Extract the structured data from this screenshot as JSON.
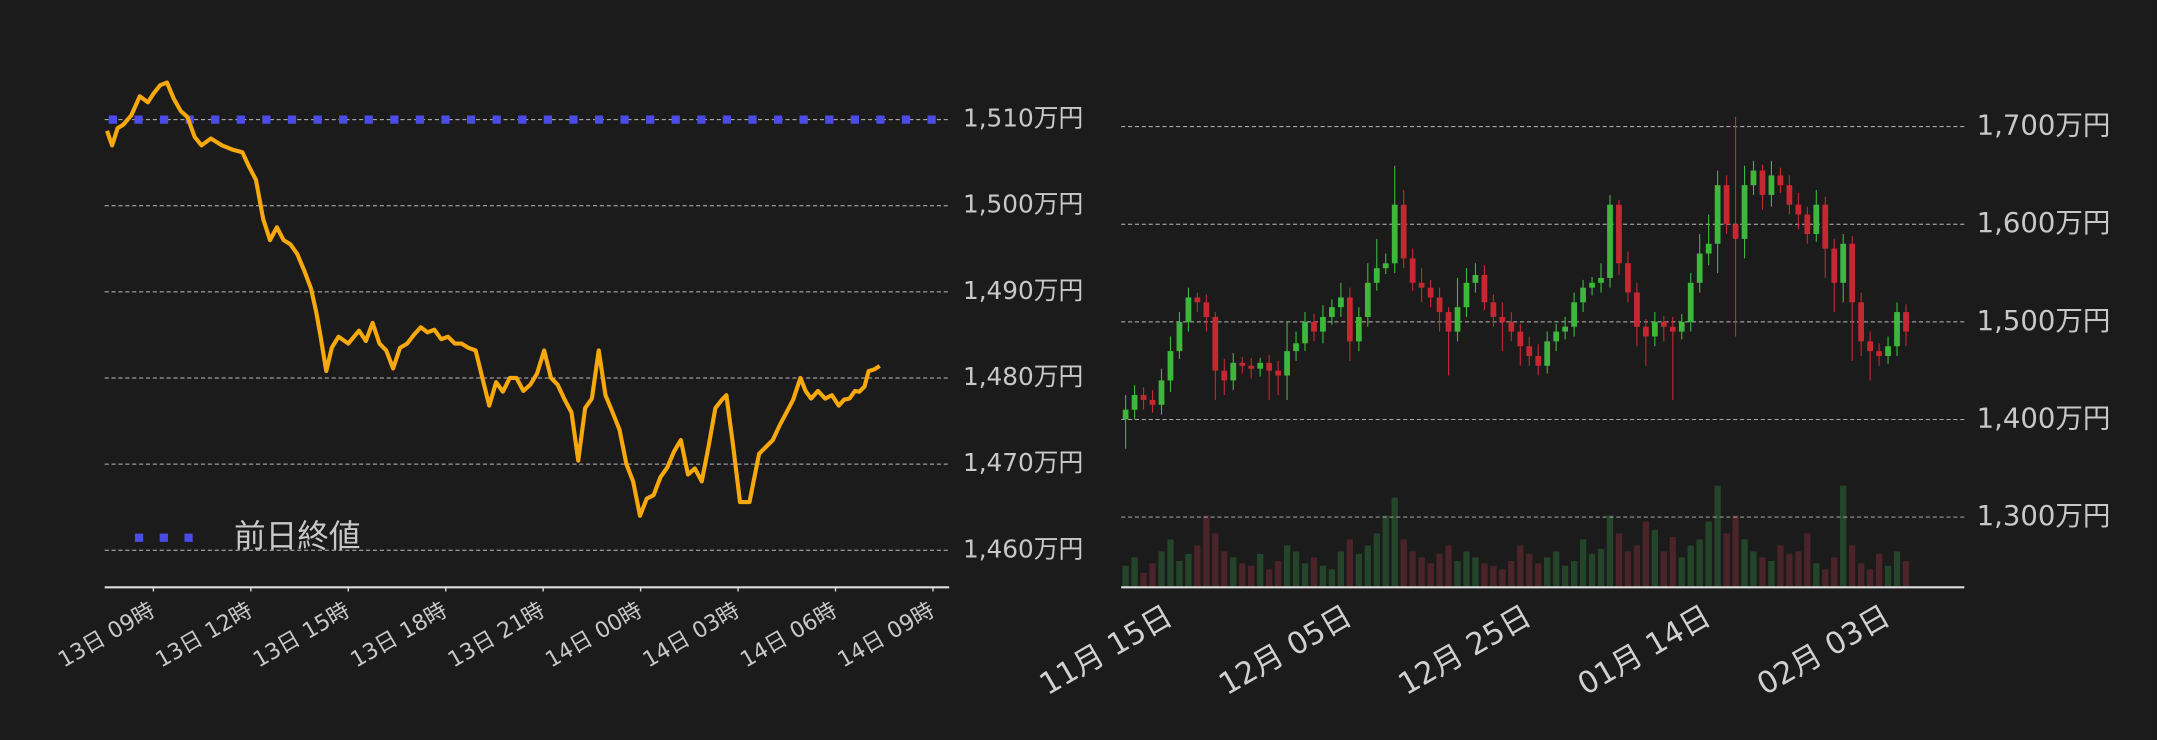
{
  "chart_data": [
    {
      "type": "line",
      "x": [
        7.57,
        7.73,
        7.9,
        8.07,
        8.32,
        8.58,
        8.83,
        9.0,
        9.21,
        9.42,
        9.63,
        9.84,
        10.05,
        10.27,
        10.48,
        10.77,
        11.11,
        11.45,
        11.74,
        11.95,
        12.16,
        12.38,
        12.59,
        12.8,
        13.01,
        13.22,
        13.43,
        13.64,
        13.85,
        14.02,
        14.15,
        14.32,
        14.49,
        14.7,
        15.0,
        15.33,
        15.54,
        15.75,
        15.96,
        16.17,
        16.38,
        16.59,
        16.81,
        17.02,
        17.23,
        17.44,
        17.65,
        17.86,
        18.07,
        18.28,
        18.49,
        18.7,
        18.92,
        19.13,
        19.34,
        19.55,
        19.76,
        19.97,
        20.18,
        20.39,
        20.6,
        20.81,
        21.03,
        21.24,
        21.45,
        21.66,
        21.87,
        22.08,
        22.29,
        22.5,
        22.71,
        22.92,
        23.14,
        23.35,
        23.56,
        23.77,
        23.98,
        24.19,
        24.4,
        24.61,
        24.82,
        25.03,
        25.24,
        25.46,
        25.67,
        25.88,
        26.09,
        26.3,
        26.51,
        26.64,
        26.85,
        27.06,
        27.35,
        27.65,
        27.86,
        28.07,
        28.28,
        28.49,
        28.7,
        28.92,
        29.08,
        29.25,
        29.46,
        29.68,
        29.89,
        30.1,
        30.27,
        30.43,
        30.6,
        30.73,
        30.89,
        31.02,
        31.19,
        31.36
      ],
      "series": [
        {
          "color": "#f6a80c",
          "values": [
            1508.7,
            1507.0,
            1509.0,
            1509.4,
            1510.5,
            1512.7,
            1512.0,
            1513.0,
            1514.0,
            1514.3,
            1512.4,
            1511.0,
            1510.3,
            1508.0,
            1507.0,
            1507.8,
            1507.0,
            1506.5,
            1506.2,
            1504.5,
            1503.0,
            1498.5,
            1496.0,
            1497.5,
            1496.0,
            1495.5,
            1494.4,
            1492.5,
            1490.4,
            1487.5,
            1484.8,
            1480.8,
            1483.5,
            1484.8,
            1484.0,
            1485.5,
            1484.3,
            1486.4,
            1484.0,
            1483.2,
            1481.1,
            1483.5,
            1484.0,
            1485.0,
            1485.9,
            1485.3,
            1485.6,
            1484.5,
            1484.8,
            1484.0,
            1484.0,
            1483.5,
            1483.2,
            1480.0,
            1476.8,
            1479.5,
            1478.4,
            1480.0,
            1480.0,
            1478.5,
            1479.2,
            1480.5,
            1483.2,
            1480.0,
            1479.2,
            1477.5,
            1476.0,
            1470.4,
            1476.5,
            1477.6,
            1483.2,
            1478.0,
            1476.0,
            1474.0,
            1470.0,
            1468.0,
            1464.0,
            1466.0,
            1466.4,
            1468.5,
            1469.6,
            1471.5,
            1472.8,
            1468.8,
            1469.5,
            1468.0,
            1472.0,
            1476.5,
            1477.5,
            1478.0,
            1472.0,
            1465.6,
            1465.6,
            1471.2,
            1472.0,
            1472.8,
            1474.5,
            1476.0,
            1477.5,
            1480.0,
            1478.5,
            1477.6,
            1478.5,
            1477.6,
            1478.0,
            1476.8,
            1477.5,
            1477.6,
            1478.5,
            1478.4,
            1479.0,
            1480.8,
            1481.0,
            1481.4
          ]
        }
      ],
      "reference_line": {
        "name": "前日終値",
        "value": 1510,
        "color": "#4b4be6"
      },
      "legend": "lower left",
      "xlim": [
        7.5,
        33.5
      ],
      "xticks": [
        {
          "value": 9,
          "label": "13日 09時"
        },
        {
          "value": 12,
          "label": "13日 12時"
        },
        {
          "value": 15,
          "label": "13日 15時"
        },
        {
          "value": 18,
          "label": "13日 18時"
        },
        {
          "value": 21,
          "label": "13日 21時"
        },
        {
          "value": 24,
          "label": "14日 00時"
        },
        {
          "value": 27,
          "label": "14日 03時"
        },
        {
          "value": 30,
          "label": "14日 06時"
        },
        {
          "value": 33,
          "label": "14日 09時"
        }
      ],
      "ylim": [
        1455.7,
        1515.1
      ],
      "yticks": [
        {
          "value": 1460,
          "label": "1,460万円"
        },
        {
          "value": 1470,
          "label": "1,470万円"
        },
        {
          "value": 1480,
          "label": "1,480万円"
        },
        {
          "value": 1490,
          "label": "1,490万円"
        },
        {
          "value": 1500,
          "label": "1,500万円"
        },
        {
          "value": 1510,
          "label": "1,510万円"
        }
      ],
      "grid": true
    },
    {
      "type": "candlestick",
      "categories": [
        null,
        null,
        null,
        null,
        null,
        "11月 15日",
        null,
        null,
        null,
        null,
        null,
        null,
        null,
        null,
        null,
        null,
        null,
        null,
        null,
        null,
        null,
        null,
        null,
        null,
        null,
        "12月 05日",
        null,
        null,
        null,
        null,
        null,
        null,
        null,
        null,
        null,
        null,
        null,
        null,
        null,
        null,
        null,
        null,
        null,
        null,
        null,
        "12月 25日",
        null,
        null,
        null,
        null,
        null,
        null,
        null,
        null,
        null,
        null,
        null,
        null,
        null,
        null,
        null,
        null,
        null,
        null,
        null,
        "01月 14日",
        null,
        null,
        null,
        null,
        null,
        null,
        null,
        null,
        null,
        null,
        null,
        null,
        null,
        null,
        null,
        null,
        null,
        null,
        null,
        "02月 03日",
        null,
        null
      ],
      "open": [
        1400,
        1410,
        1425,
        1420,
        1415,
        1440,
        1470,
        1500,
        1525,
        1520,
        1505,
        1450,
        1440,
        1458,
        1455,
        1452,
        1458,
        1450,
        1445,
        1470,
        1478,
        1500,
        1490,
        1505,
        1515,
        1525,
        1480,
        1505,
        1540,
        1555,
        1560,
        1620,
        1565,
        1540,
        1535,
        1525,
        1510,
        1490,
        1515,
        1540,
        1548,
        1520,
        1505,
        1500,
        1490,
        1475,
        1465,
        1455,
        1480,
        1490,
        1495,
        1520,
        1535,
        1540,
        1545,
        1620,
        1560,
        1530,
        1495,
        1485,
        1500,
        1495,
        1490,
        1500,
        1540,
        1570,
        1580,
        1640,
        1600,
        1585,
        1640,
        1655,
        1630,
        1650,
        1640,
        1620,
        1610,
        1590,
        1620,
        1575,
        1540,
        1580,
        1520,
        1480,
        1470,
        1465,
        1475,
        1510
      ],
      "high": [
        1425,
        1435,
        1433,
        1430,
        1452,
        1485,
        1510,
        1535,
        1530,
        1528,
        1510,
        1462,
        1468,
        1464,
        1463,
        1463,
        1466,
        1460,
        1500,
        1490,
        1510,
        1508,
        1517,
        1523,
        1540,
        1535,
        1515,
        1560,
        1585,
        1570,
        1660,
        1635,
        1575,
        1555,
        1543,
        1535,
        1515,
        1545,
        1555,
        1560,
        1558,
        1528,
        1520,
        1510,
        1498,
        1485,
        1477,
        1490,
        1498,
        1505,
        1530,
        1543,
        1546,
        1560,
        1630,
        1625,
        1572,
        1540,
        1503,
        1510,
        1506,
        1505,
        1508,
        1550,
        1590,
        1610,
        1655,
        1650,
        1710,
        1660,
        1665,
        1661,
        1665,
        1658,
        1650,
        1632,
        1618,
        1635,
        1628,
        1585,
        1590,
        1588,
        1530,
        1490,
        1478,
        1485,
        1520,
        1518
      ],
      "low": [
        1370,
        1400,
        1410,
        1407,
        1405,
        1428,
        1462,
        1490,
        1510,
        1490,
        1420,
        1425,
        1430,
        1447,
        1442,
        1444,
        1420,
        1425,
        1420,
        1460,
        1470,
        1480,
        1478,
        1497,
        1505,
        1460,
        1470,
        1495,
        1532,
        1549,
        1550,
        1555,
        1532,
        1520,
        1515,
        1490,
        1445,
        1480,
        1505,
        1530,
        1512,
        1495,
        1470,
        1480,
        1455,
        1455,
        1445,
        1447,
        1470,
        1482,
        1485,
        1510,
        1527,
        1530,
        1535,
        1548,
        1520,
        1475,
        1455,
        1475,
        1480,
        1420,
        1482,
        1490,
        1530,
        1558,
        1550,
        1590,
        1485,
        1565,
        1630,
        1615,
        1618,
        1632,
        1610,
        1595,
        1580,
        1582,
        1545,
        1510,
        1520,
        1460,
        1465,
        1440,
        1455,
        1457,
        1465,
        1475
      ],
      "close": [
        1410,
        1425,
        1420,
        1415,
        1440,
        1470,
        1500,
        1525,
        1520,
        1505,
        1450,
        1440,
        1458,
        1455,
        1452,
        1458,
        1450,
        1445,
        1470,
        1478,
        1500,
        1490,
        1505,
        1515,
        1525,
        1480,
        1505,
        1540,
        1555,
        1560,
        1620,
        1565,
        1540,
        1535,
        1525,
        1510,
        1490,
        1515,
        1540,
        1548,
        1520,
        1505,
        1500,
        1490,
        1475,
        1465,
        1455,
        1480,
        1490,
        1495,
        1520,
        1535,
        1540,
        1545,
        1620,
        1560,
        1530,
        1495,
        1485,
        1500,
        1495,
        1490,
        1500,
        1540,
        1570,
        1580,
        1640,
        1600,
        1585,
        1640,
        1655,
        1630,
        1650,
        1640,
        1620,
        1610,
        1590,
        1620,
        1575,
        1540,
        1580,
        1520,
        1480,
        1470,
        1465,
        1475,
        1510,
        1490
      ],
      "volume": [
        18,
        25,
        12,
        20,
        30,
        40,
        22,
        28,
        35,
        60,
        45,
        30,
        25,
        20,
        18,
        28,
        15,
        22,
        35,
        30,
        20,
        25,
        18,
        15,
        30,
        40,
        28,
        35,
        45,
        60,
        75,
        40,
        30,
        25,
        20,
        28,
        35,
        22,
        30,
        25,
        20,
        18,
        15,
        22,
        35,
        28,
        20,
        25,
        30,
        18,
        22,
        40,
        28,
        32,
        60,
        45,
        30,
        35,
        55,
        48,
        30,
        42,
        25,
        35,
        40,
        55,
        85,
        45,
        60,
        40,
        30,
        25,
        22,
        35,
        28,
        30,
        45,
        20,
        15,
        25,
        85,
        35,
        20,
        15,
        28,
        18,
        30,
        22
      ],
      "up_color": "#3db83d",
      "down_color": "#c62832",
      "volume_up_color": "#24452a",
      "volume_down_color": "#4a2429",
      "ylim": [
        1228,
        1717
      ],
      "yticks": [
        {
          "value": 1300,
          "label": "1,300万円"
        },
        {
          "value": 1400,
          "label": "1,400万円"
        },
        {
          "value": 1500,
          "label": "1,500万円"
        },
        {
          "value": 1600,
          "label": "1,600万円"
        },
        {
          "value": 1700,
          "label": "1,700万円"
        }
      ],
      "y2lim": [
        0,
        100
      ],
      "grid": true
    }
  ]
}
